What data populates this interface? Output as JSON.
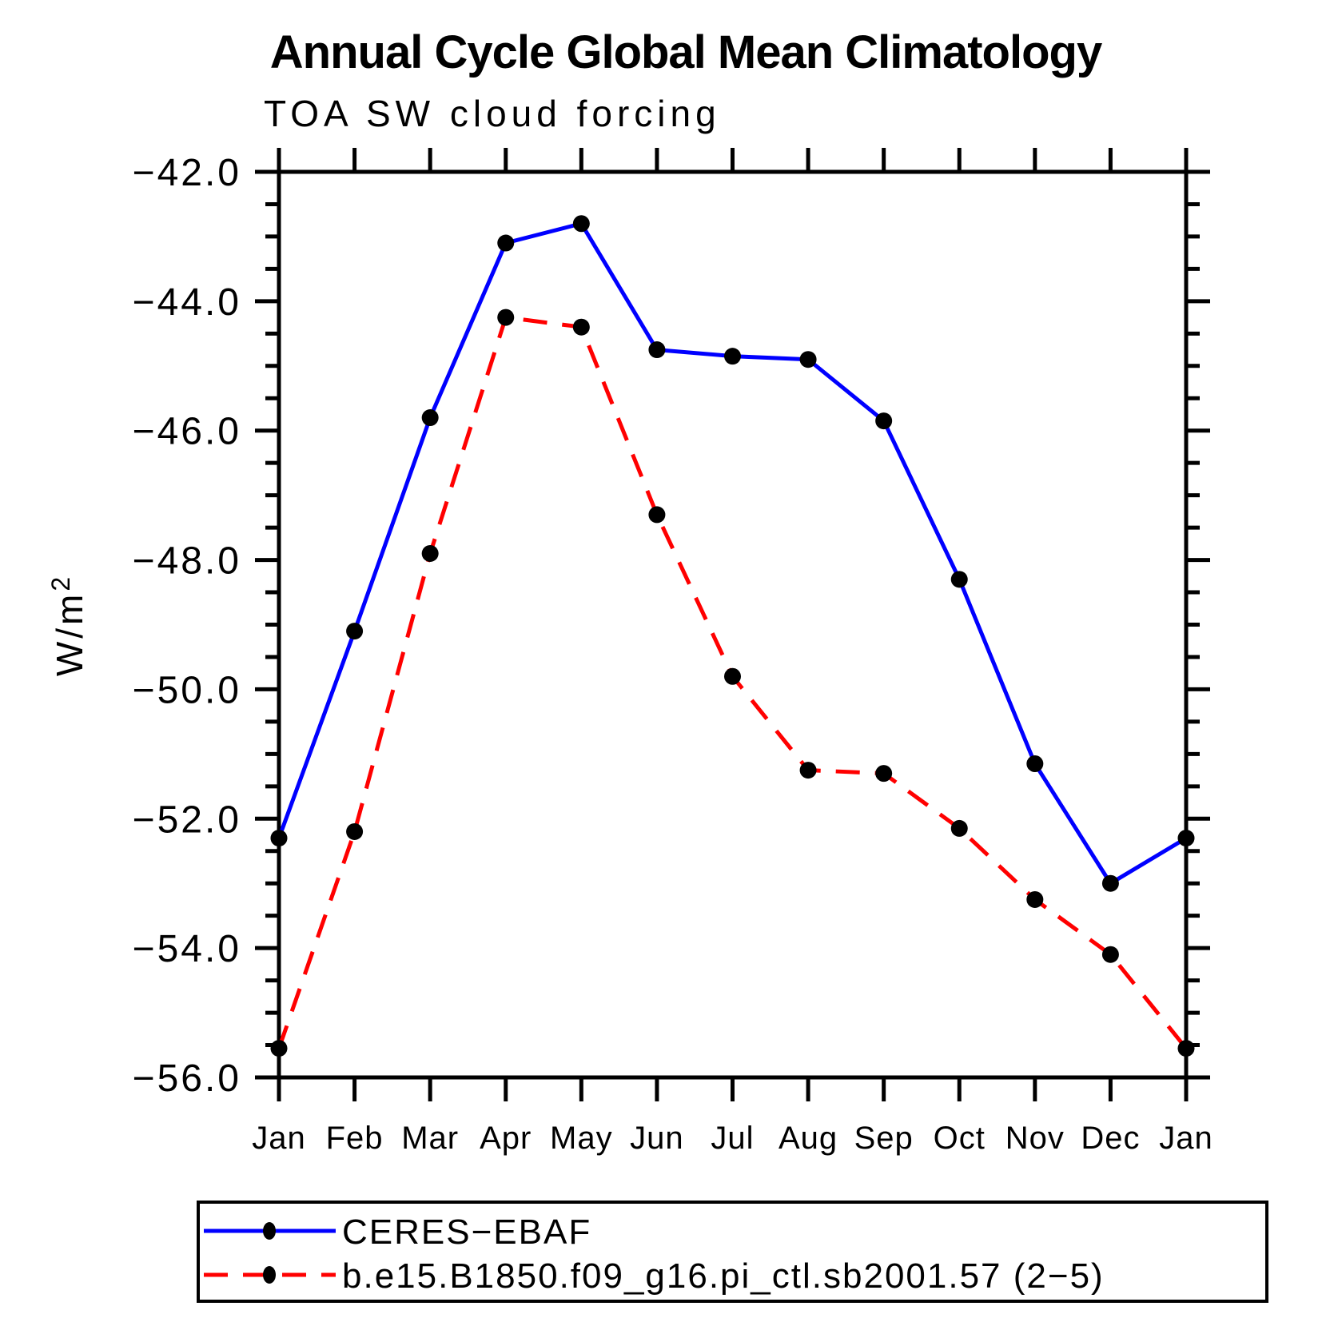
{
  "chart": {
    "title": "Annual Cycle Global Mean Climatology",
    "subtitle": "TOA SW cloud forcing",
    "y_axis_label_base": "W/m",
    "y_axis_label_exp": "2"
  },
  "chart_data": {
    "type": "line",
    "title": "Annual Cycle Global Mean Climatology",
    "subtitle": "TOA SW cloud forcing",
    "ylabel": "W/m2",
    "categories": [
      "Jan",
      "Feb",
      "Mar",
      "Apr",
      "May",
      "Jun",
      "Jul",
      "Aug",
      "Sep",
      "Oct",
      "Nov",
      "Dec",
      "Jan"
    ],
    "series": [
      {
        "name": "CERES−EBAF",
        "color": "#0000ff",
        "line_style": "solid",
        "marker": "filled-circle",
        "marker_color": "#000000",
        "values": [
          -52.3,
          -49.1,
          -45.8,
          -43.1,
          -42.8,
          -44.75,
          -44.85,
          -44.9,
          -45.85,
          -48.3,
          -51.15,
          -53.0,
          -52.3
        ]
      },
      {
        "name": "b.e15.B1850.f09_g16.pi_ctl.sb2001.57 (2−5)",
        "color": "#ff0000",
        "line_style": "dashed",
        "marker": "filled-circle",
        "marker_color": "#000000",
        "values": [
          -55.55,
          -52.2,
          -47.9,
          -44.25,
          -44.4,
          -47.3,
          -49.8,
          -51.25,
          -51.3,
          -52.15,
          -53.25,
          -54.1,
          -55.55
        ]
      }
    ],
    "ylim": [
      -56.0,
      -42.0
    ],
    "ytick_major_interval": 2.0,
    "ytick_minor_interval": 0.5,
    "ytick_labels": [
      "−42.0",
      "−44.0",
      "−46.0",
      "−48.0",
      "−50.0",
      "−52.0",
      "−54.0",
      "−56.0"
    ],
    "grid": "off",
    "legend_position": "bottom-left"
  }
}
